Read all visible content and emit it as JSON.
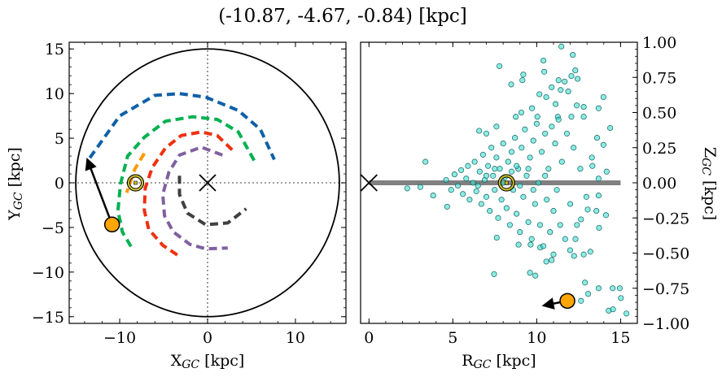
{
  "title": "(-10.87, -4.67, -0.84) [kpc]",
  "chart_data": [
    {
      "type": "line",
      "xlabel": {
        "main": "X",
        "sub": "GC",
        "unit": " [kpc]"
      },
      "ylabel": {
        "main": "Y",
        "sub": "GC",
        "unit": " [kpc]"
      },
      "xlim": [
        -15.75,
        15.75
      ],
      "ylim": [
        -15.75,
        15.75
      ],
      "xticks": [
        -10,
        0,
        10
      ],
      "yticks": [
        -15,
        -10,
        -5,
        0,
        5,
        10,
        15
      ],
      "xtick_labels": [
        "−10",
        "0",
        "10"
      ],
      "ytick_labels": [
        "−15",
        "−10",
        "−5",
        "0",
        "5",
        "10",
        "15"
      ],
      "grid": false,
      "boundary_circle_radius": 15,
      "reference_lines": {
        "x": 0,
        "y": 0,
        "style": "dotted",
        "color": "#808080"
      },
      "galactic_center": {
        "x": 0,
        "y": 0,
        "marker": "x"
      },
      "sun": {
        "x": -8.2,
        "y": 0.0,
        "marker": "sun-symbol",
        "color": "#c8c020"
      },
      "object": {
        "x": -10.87,
        "y": -4.67,
        "color": "#ffa500",
        "arrow_to": {
          "x": -13.6,
          "y": 2.4
        }
      },
      "series": [
        {
          "color": "#1060a8",
          "points": [
            [
              -13.4,
              2.8
            ],
            [
              -10.0,
              7.5
            ],
            [
              -6.0,
              9.8
            ],
            [
              -3.2,
              10.0
            ],
            [
              -0.2,
              9.6
            ],
            [
              3.5,
              8.1
            ],
            [
              6.0,
              6.0
            ],
            [
              7.6,
              2.6
            ]
          ]
        },
        {
          "color": "#00b050",
          "points": [
            [
              5.3,
              2.5
            ],
            [
              3.5,
              5.7
            ],
            [
              1.1,
              7.1
            ],
            [
              -1.7,
              7.4
            ],
            [
              -4.8,
              6.9
            ],
            [
              -7.2,
              5.1
            ],
            [
              -9.1,
              3.0
            ],
            [
              -9.9,
              -0.1
            ],
            [
              -10.2,
              -3.1
            ],
            [
              -9.7,
              -5.5
            ],
            [
              -8.5,
              -7.5
            ]
          ]
        },
        {
          "color": "#ff9900",
          "points": [
            [
              -7.2,
              3.3
            ],
            [
              -8.3,
              1.5
            ],
            [
              -9.2,
              -1.1
            ]
          ]
        },
        {
          "color": "#f03010",
          "points": [
            [
              2.8,
              3.7
            ],
            [
              1.1,
              5.3
            ],
            [
              -0.7,
              5.7
            ],
            [
              -3.0,
              5.3
            ],
            [
              -4.8,
              3.9
            ],
            [
              -6.3,
              1.7
            ],
            [
              -7.1,
              -0.6
            ],
            [
              -7.2,
              -3.1
            ],
            [
              -6.7,
              -5.2
            ],
            [
              -5.1,
              -7.0
            ],
            [
              -3.1,
              -8.3
            ]
          ]
        },
        {
          "color": "#8060a0",
          "points": [
            [
              1.7,
              3.1
            ],
            [
              -0.7,
              4.0
            ],
            [
              -3.2,
              3.1
            ],
            [
              -4.4,
              1.2
            ],
            [
              -5.1,
              -1.3
            ],
            [
              -4.9,
              -3.7
            ],
            [
              -3.9,
              -5.5
            ],
            [
              -2.0,
              -6.9
            ],
            [
              -0.2,
              -7.4
            ],
            [
              2.3,
              -7.3
            ]
          ]
        },
        {
          "color": "#404040",
          "points": [
            [
              -3.2,
              0.8
            ],
            [
              -3.2,
              -1.3
            ],
            [
              -2.3,
              -3.4
            ],
            [
              -0.2,
              -4.7
            ],
            [
              2.3,
              -4.5
            ],
            [
              4.4,
              -2.9
            ]
          ]
        }
      ]
    },
    {
      "type": "scatter",
      "xlabel": {
        "main": "R",
        "sub": "GC",
        "unit": " [kpc]"
      },
      "ylabel": {
        "main": "Z",
        "sub": "GC",
        "unit": " [kpc]"
      },
      "xlim": [
        -0.5,
        16.0
      ],
      "ylim": [
        -1.0,
        1.0
      ],
      "xticks": [
        0,
        5,
        10,
        15
      ],
      "yticks": [
        -1.0,
        -0.75,
        -0.5,
        -0.25,
        0.0,
        0.25,
        0.5,
        0.75,
        1.0
      ],
      "xtick_labels": [
        "0",
        "5",
        "10",
        "15"
      ],
      "ytick_labels": [
        "−1.00",
        "−0.75",
        "−0.50",
        "−0.25",
        "0.00",
        "0.25",
        "0.50",
        "0.75",
        "1.00"
      ],
      "yaxis_position": "right",
      "grid": false,
      "disk_line": {
        "x": [
          0,
          15
        ],
        "y": 0,
        "color": "#808080"
      },
      "galactic_center": {
        "x": 0,
        "y": 0,
        "marker": "x"
      },
      "sun": {
        "x": 8.2,
        "y": 0.0,
        "marker": "sun-symbol",
        "color": "#c8c020"
      },
      "object": {
        "x": 11.83,
        "y": -0.84,
        "color": "#ffa500",
        "arrow_to": {
          "x": 10.54,
          "y": -0.87
        }
      },
      "point_color": "#40e0d0",
      "points": [
        [
          11.47,
          0.97
        ],
        [
          12.15,
          0.91
        ],
        [
          10.4,
          0.87
        ],
        [
          7.78,
          0.83
        ],
        [
          10.45,
          0.79
        ],
        [
          12.3,
          0.8
        ],
        [
          9.2,
          0.77
        ],
        [
          9.15,
          0.73
        ],
        [
          8.48,
          0.7
        ],
        [
          12.07,
          0.76
        ],
        [
          12.44,
          0.74
        ],
        [
          11.3,
          0.73
        ],
        [
          11.67,
          0.72
        ],
        [
          10.89,
          0.68
        ],
        [
          11.43,
          0.66
        ],
        [
          11.88,
          0.65
        ],
        [
          10.16,
          0.63
        ],
        [
          10.57,
          0.61
        ],
        [
          13.98,
          0.61
        ],
        [
          11.13,
          0.56
        ],
        [
          9.72,
          0.53
        ],
        [
          12.39,
          0.55
        ],
        [
          12.8,
          0.54
        ],
        [
          13.69,
          0.53
        ],
        [
          9.08,
          0.5
        ],
        [
          8.75,
          0.47
        ],
        [
          10.04,
          0.47
        ],
        [
          11.26,
          0.47
        ],
        [
          12.07,
          0.47
        ],
        [
          12.8,
          0.47
        ],
        [
          14.38,
          0.39
        ],
        [
          7.6,
          0.4
        ],
        [
          6.57,
          0.37
        ],
        [
          7.0,
          0.35
        ],
        [
          13.98,
          0.27
        ],
        [
          13.6,
          0.32
        ],
        [
          13.29,
          0.18
        ],
        [
          13.32,
          0.12
        ],
        [
          14.17,
          0.08
        ],
        [
          13.69,
          0.03
        ],
        [
          3.37,
          0.15
        ],
        [
          2.28,
          -0.04
        ],
        [
          3.06,
          -0.03
        ],
        [
          3.83,
          -0.09
        ],
        [
          4.66,
          -0.17
        ],
        [
          13.69,
          -0.09
        ],
        [
          14.13,
          -0.23
        ],
        [
          13.56,
          -0.2
        ],
        [
          13.72,
          -0.32
        ],
        [
          12.96,
          -0.1
        ],
        [
          13.04,
          -0.19
        ],
        [
          12.64,
          -0.26
        ],
        [
          12.31,
          -0.4
        ],
        [
          13.2,
          -0.49
        ],
        [
          11.99,
          -0.48
        ],
        [
          12.23,
          -0.52
        ],
        [
          12.8,
          -0.51
        ],
        [
          11.0,
          -0.51
        ],
        [
          10.57,
          -0.56
        ],
        [
          10.89,
          -0.55
        ],
        [
          10.21,
          -0.46
        ],
        [
          8.92,
          -0.44
        ],
        [
          9.64,
          -0.44
        ],
        [
          7.62,
          -0.39
        ],
        [
          7.46,
          -0.65
        ],
        [
          9.6,
          -0.64
        ],
        [
          9.92,
          -0.66
        ],
        [
          12.88,
          -0.71
        ],
        [
          13.69,
          -0.75
        ],
        [
          14.53,
          -0.75
        ],
        [
          14.95,
          -0.75
        ],
        [
          13.07,
          -0.79
        ],
        [
          15.02,
          -0.82
        ],
        [
          12.64,
          -0.84
        ],
        [
          14.29,
          -0.91
        ],
        [
          14.55,
          -0.9
        ],
        [
          15.35,
          -0.93
        ],
        [
          4.6,
          0.02
        ],
        [
          4.9,
          -0.05
        ],
        [
          5.1,
          0.06
        ],
        [
          5.3,
          -0.02
        ],
        [
          5.5,
          0.09
        ],
        [
          5.6,
          -0.08
        ],
        [
          5.8,
          0.03
        ],
        [
          5.9,
          0.12
        ],
        [
          6.0,
          -0.12
        ],
        [
          6.2,
          0.0
        ],
        [
          6.3,
          0.15
        ],
        [
          6.4,
          -0.06
        ],
        [
          6.6,
          0.08
        ],
        [
          6.7,
          -0.15
        ],
        [
          6.8,
          0.2
        ],
        [
          6.9,
          0.02
        ],
        [
          7.0,
          -0.1
        ],
        [
          7.1,
          0.12
        ],
        [
          7.2,
          -0.2
        ],
        [
          7.3,
          0.25
        ],
        [
          7.4,
          0.05
        ],
        [
          7.5,
          -0.05
        ],
        [
          7.6,
          0.18
        ],
        [
          7.7,
          -0.25
        ],
        [
          7.8,
          0.1
        ],
        [
          7.9,
          -0.12
        ],
        [
          8.0,
          0.28
        ],
        [
          8.1,
          0.04
        ],
        [
          8.2,
          -0.18
        ],
        [
          8.3,
          0.15
        ],
        [
          8.4,
          -0.3
        ],
        [
          8.5,
          0.22
        ],
        [
          8.6,
          -0.05
        ],
        [
          8.7,
          0.32
        ],
        [
          8.8,
          -0.22
        ],
        [
          8.9,
          0.1
        ],
        [
          9.0,
          -0.35
        ],
        [
          9.1,
          0.25
        ],
        [
          9.2,
          -0.1
        ],
        [
          9.3,
          0.38
        ],
        [
          9.4,
          0.05
        ],
        [
          9.5,
          -0.28
        ],
        [
          9.6,
          0.18
        ],
        [
          9.7,
          -0.4
        ],
        [
          9.8,
          0.3
        ],
        [
          9.9,
          -0.15
        ],
        [
          10.0,
          0.42
        ],
        [
          10.1,
          0.0
        ],
        [
          10.2,
          -0.3
        ],
        [
          10.3,
          0.22
        ],
        [
          10.4,
          -0.45
        ],
        [
          10.5,
          0.35
        ],
        [
          10.6,
          -0.12
        ],
        [
          10.7,
          0.1
        ],
        [
          10.8,
          -0.35
        ],
        [
          10.9,
          0.4
        ],
        [
          11.0,
          -0.2
        ],
        [
          11.1,
          0.28
        ],
        [
          11.2,
          -0.05
        ],
        [
          11.3,
          0.45
        ],
        [
          11.4,
          -0.3
        ],
        [
          11.5,
          0.15
        ],
        [
          11.7,
          -0.4
        ],
        [
          11.8,
          0.35
        ],
        [
          12.0,
          -0.15
        ],
        [
          12.2,
          0.25
        ],
        [
          12.4,
          -0.3
        ],
        [
          12.6,
          0.1
        ],
        [
          8.0,
          0.0
        ],
        [
          8.5,
          0.08
        ],
        [
          9.0,
          -0.02
        ],
        [
          9.5,
          0.1
        ],
        [
          7.5,
          0.1
        ],
        [
          8.8,
          0.12
        ],
        [
          9.8,
          -0.05
        ],
        [
          10.5,
          0.05
        ],
        [
          6.5,
          -0.02
        ],
        [
          7.0,
          0.05
        ]
      ]
    }
  ]
}
